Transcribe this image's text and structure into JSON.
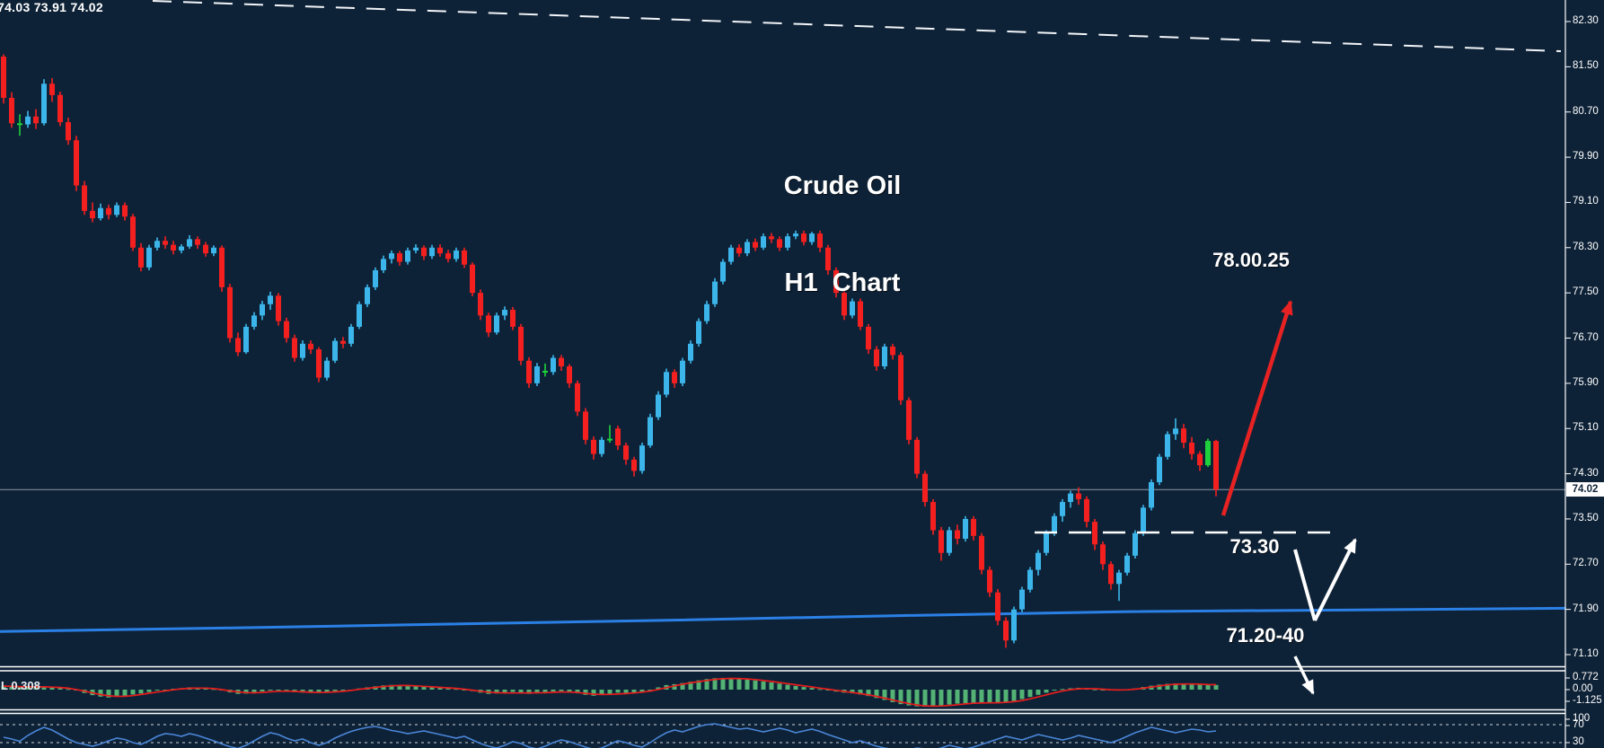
{
  "window": {
    "background": "#0e2237"
  },
  "chart_data": {
    "type": "candlestick",
    "title_line1": "Crude Oil",
    "title_line2": "H1  Chart",
    "quote_readout": "74.03 73.91 74.02",
    "timeframe": "H1",
    "price_ticks": [
      "82.30",
      "81.50",
      "80.70",
      "79.90",
      "79.10",
      "78.30",
      "77.50",
      "76.70",
      "75.90",
      "75.10",
      "74.30",
      "73.50",
      "72.70",
      "71.90",
      "71.10"
    ],
    "current_price": "74.02",
    "annotations": {
      "target": "78.00.25",
      "support": "73.30",
      "zone": "71.20-40"
    },
    "colors": {
      "bull": "#3cb6ea",
      "bear": "#f42020",
      "doji_green": "#1ed13c",
      "ma": "#2b80e6",
      "histogram": "#53b274",
      "signal": "#e81c1c",
      "stoch": "#4a86d8",
      "annotation_red": "#e82222",
      "annotation_blue": "#1e6fe0",
      "price_line": "#8b98a6",
      "axis_white": "#ffffff"
    },
    "candles": [
      [
        81.68,
        81.72,
        80.85,
        80.95
      ],
      [
        80.95,
        81.05,
        80.42,
        80.5
      ],
      [
        80.5,
        80.66,
        80.28,
        80.48,
        1
      ],
      [
        80.48,
        80.72,
        80.42,
        80.62
      ],
      [
        80.62,
        80.75,
        80.4,
        80.5
      ],
      [
        80.5,
        81.28,
        80.46,
        81.2
      ],
      [
        81.2,
        81.3,
        80.88,
        81.0
      ],
      [
        81.0,
        81.06,
        80.45,
        80.52
      ],
      [
        80.52,
        80.6,
        80.12,
        80.2
      ],
      [
        80.2,
        80.28,
        79.3,
        79.4
      ],
      [
        79.4,
        79.48,
        78.88,
        78.95
      ],
      [
        78.95,
        79.1,
        78.75,
        78.82
      ],
      [
        78.82,
        79.08,
        78.78,
        79.0
      ],
      [
        79.0,
        79.06,
        78.8,
        78.88
      ],
      [
        78.88,
        79.1,
        78.84,
        79.05
      ],
      [
        79.05,
        79.1,
        78.78,
        78.85
      ],
      [
        78.85,
        78.9,
        78.24,
        78.3
      ],
      [
        78.3,
        78.38,
        77.88,
        77.95
      ],
      [
        77.95,
        78.35,
        77.9,
        78.3
      ],
      [
        78.3,
        78.48,
        78.25,
        78.42
      ],
      [
        78.42,
        78.5,
        78.28,
        78.35
      ],
      [
        78.35,
        78.42,
        78.18,
        78.25
      ],
      [
        78.25,
        78.36,
        78.2,
        78.32
      ],
      [
        78.32,
        78.52,
        78.28,
        78.45
      ],
      [
        78.45,
        78.5,
        78.28,
        78.35
      ],
      [
        78.35,
        78.4,
        78.14,
        78.2
      ],
      [
        78.2,
        78.34,
        78.15,
        78.3
      ],
      [
        78.3,
        78.34,
        77.52,
        77.6
      ],
      [
        77.6,
        77.66,
        76.62,
        76.7
      ],
      [
        76.7,
        76.8,
        76.38,
        76.45
      ],
      [
        76.45,
        76.95,
        76.42,
        76.9
      ],
      [
        76.9,
        77.16,
        76.85,
        77.1
      ],
      [
        77.1,
        77.36,
        77.02,
        77.3
      ],
      [
        77.3,
        77.52,
        77.2,
        77.45
      ],
      [
        77.45,
        77.5,
        76.92,
        77.0
      ],
      [
        77.0,
        77.06,
        76.62,
        76.7
      ],
      [
        76.7,
        76.76,
        76.28,
        76.35
      ],
      [
        76.35,
        76.66,
        76.3,
        76.6
      ],
      [
        76.6,
        76.66,
        76.42,
        76.5
      ],
      [
        76.5,
        76.54,
        75.92,
        76.0
      ],
      [
        76.0,
        76.36,
        75.95,
        76.3
      ],
      [
        76.3,
        76.7,
        76.26,
        76.65
      ],
      [
        76.65,
        76.72,
        76.52,
        76.6
      ],
      [
        76.6,
        76.95,
        76.55,
        76.9
      ],
      [
        76.9,
        77.35,
        76.86,
        77.3
      ],
      [
        77.3,
        77.65,
        77.25,
        77.6
      ],
      [
        77.6,
        77.95,
        77.55,
        77.9
      ],
      [
        77.9,
        78.16,
        77.85,
        78.1
      ],
      [
        78.1,
        78.25,
        78.02,
        78.2
      ],
      [
        78.2,
        78.24,
        77.98,
        78.05
      ],
      [
        78.05,
        78.3,
        78.0,
        78.25
      ],
      [
        78.25,
        78.36,
        78.2,
        78.3
      ],
      [
        78.3,
        78.34,
        78.08,
        78.15
      ],
      [
        78.15,
        78.35,
        78.1,
        78.3
      ],
      [
        78.3,
        78.36,
        78.14,
        78.2
      ],
      [
        78.2,
        78.26,
        78.04,
        78.1
      ],
      [
        78.1,
        78.3,
        78.05,
        78.25
      ],
      [
        78.25,
        78.3,
        77.94,
        78.0
      ],
      [
        78.0,
        78.04,
        77.44,
        77.5
      ],
      [
        77.5,
        77.56,
        77.02,
        77.1
      ],
      [
        77.1,
        77.15,
        76.72,
        76.8
      ],
      [
        76.8,
        77.15,
        76.76,
        77.1
      ],
      [
        77.1,
        77.26,
        77.02,
        77.2
      ],
      [
        77.2,
        77.25,
        76.84,
        76.9
      ],
      [
        76.9,
        76.95,
        76.22,
        76.3
      ],
      [
        76.3,
        76.36,
        75.82,
        75.9
      ],
      [
        75.9,
        76.26,
        75.85,
        76.2
      ],
      [
        76.12,
        76.25,
        76.02,
        76.1,
        1
      ],
      [
        76.1,
        76.4,
        76.05,
        76.35
      ],
      [
        76.35,
        76.4,
        76.12,
        76.2
      ],
      [
        76.2,
        76.24,
        75.82,
        75.9
      ],
      [
        75.9,
        75.95,
        75.32,
        75.4
      ],
      [
        75.4,
        75.46,
        74.82,
        74.9
      ],
      [
        74.9,
        74.96,
        74.55,
        74.65
      ],
      [
        74.65,
        74.95,
        74.6,
        74.9
      ],
      [
        74.92,
        75.16,
        74.85,
        74.9,
        1
      ],
      [
        75.1,
        75.15,
        74.72,
        74.8
      ],
      [
        74.8,
        74.85,
        74.46,
        74.55
      ],
      [
        74.55,
        74.6,
        74.25,
        74.35
      ],
      [
        74.35,
        74.85,
        74.3,
        74.8
      ],
      [
        74.8,
        75.36,
        74.76,
        75.3
      ],
      [
        75.3,
        75.76,
        75.25,
        75.7
      ],
      [
        75.7,
        76.16,
        75.65,
        76.1
      ],
      [
        76.1,
        76.15,
        75.82,
        75.9
      ],
      [
        75.9,
        76.35,
        75.85,
        76.3
      ],
      [
        76.3,
        76.66,
        76.25,
        76.6
      ],
      [
        76.6,
        77.05,
        76.55,
        77.0
      ],
      [
        77.0,
        77.36,
        76.95,
        77.3
      ],
      [
        77.3,
        77.76,
        77.25,
        77.7
      ],
      [
        77.7,
        78.1,
        77.65,
        78.05
      ],
      [
        78.05,
        78.35,
        78.0,
        78.3
      ],
      [
        78.3,
        78.36,
        78.14,
        78.2
      ],
      [
        78.2,
        78.45,
        78.15,
        78.4
      ],
      [
        78.4,
        78.46,
        78.24,
        78.3
      ],
      [
        78.3,
        78.55,
        78.26,
        78.5
      ],
      [
        78.5,
        78.56,
        78.38,
        78.45
      ],
      [
        78.45,
        78.5,
        78.24,
        78.3
      ],
      [
        78.3,
        78.55,
        78.25,
        78.5
      ],
      [
        78.5,
        78.6,
        78.45,
        78.55
      ],
      [
        78.55,
        78.6,
        78.34,
        78.4
      ],
      [
        78.4,
        78.58,
        78.35,
        78.55
      ],
      [
        78.55,
        78.6,
        78.22,
        78.3
      ],
      [
        78.3,
        78.35,
        77.82,
        77.9
      ],
      [
        77.9,
        77.95,
        77.42,
        77.5
      ],
      [
        77.5,
        77.55,
        77.02,
        77.1
      ],
      [
        77.1,
        77.4,
        77.05,
        77.35
      ],
      [
        77.35,
        77.4,
        76.84,
        76.9
      ],
      [
        76.9,
        76.95,
        76.42,
        76.5
      ],
      [
        76.5,
        76.56,
        76.12,
        76.2
      ],
      [
        76.2,
        76.6,
        76.15,
        76.55
      ],
      [
        76.55,
        76.6,
        76.32,
        76.4
      ],
      [
        76.4,
        76.45,
        75.52,
        75.6
      ],
      [
        75.6,
        75.65,
        74.82,
        74.9
      ],
      [
        74.9,
        74.95,
        74.22,
        74.3
      ],
      [
        74.3,
        74.35,
        73.72,
        73.8
      ],
      [
        73.8,
        73.85,
        73.22,
        73.3
      ],
      [
        73.3,
        73.36,
        72.76,
        72.9
      ],
      [
        72.9,
        73.36,
        72.85,
        73.3
      ],
      [
        73.3,
        73.4,
        73.05,
        73.15
      ],
      [
        73.15,
        73.55,
        73.1,
        73.5
      ],
      [
        73.5,
        73.55,
        73.12,
        73.2
      ],
      [
        73.2,
        73.25,
        72.52,
        72.6
      ],
      [
        72.6,
        72.66,
        72.12,
        72.2
      ],
      [
        72.2,
        72.26,
        71.62,
        71.7
      ],
      [
        71.7,
        71.76,
        71.22,
        71.35
      ],
      [
        71.35,
        71.95,
        71.3,
        71.9
      ],
      [
        71.9,
        72.3,
        71.85,
        72.25
      ],
      [
        72.25,
        72.65,
        72.2,
        72.6
      ],
      [
        72.6,
        72.95,
        72.5,
        72.9
      ],
      [
        72.9,
        73.3,
        72.85,
        73.25
      ],
      [
        73.25,
        73.6,
        73.2,
        73.55
      ],
      [
        73.55,
        73.85,
        73.45,
        73.8
      ],
      [
        73.8,
        74.0,
        73.7,
        73.95
      ],
      [
        73.95,
        74.06,
        73.75,
        73.85
      ],
      [
        73.85,
        73.9,
        73.35,
        73.45
      ],
      [
        73.45,
        73.5,
        72.95,
        73.05
      ],
      [
        73.05,
        73.1,
        72.6,
        72.7
      ],
      [
        72.7,
        72.75,
        72.25,
        72.35
      ],
      [
        72.35,
        72.6,
        72.05,
        72.55
      ],
      [
        72.55,
        72.9,
        72.5,
        72.85
      ],
      [
        72.85,
        73.3,
        72.8,
        73.25
      ],
      [
        73.25,
        73.75,
        73.2,
        73.7
      ],
      [
        73.7,
        74.2,
        73.65,
        74.15
      ],
      [
        74.15,
        74.65,
        74.1,
        74.6
      ],
      [
        74.6,
        75.05,
        74.55,
        75.0
      ],
      [
        75.0,
        75.28,
        74.9,
        75.1
      ],
      [
        75.1,
        75.18,
        74.75,
        74.85
      ],
      [
        74.85,
        74.95,
        74.55,
        74.65
      ],
      [
        74.65,
        74.7,
        74.35,
        74.45
      ],
      [
        74.45,
        74.92,
        74.42,
        74.88,
        1
      ],
      [
        74.88,
        74.9,
        73.9,
        74.02
      ]
    ],
    "ma_line": [
      [
        0,
        71.51
      ],
      [
        250,
        71.57
      ],
      [
        500,
        71.64
      ],
      [
        750,
        71.71
      ],
      [
        1000,
        71.79
      ],
      [
        1250,
        71.86
      ],
      [
        1742,
        71.92
      ]
    ],
    "macd": {
      "label": "L 0.308",
      "axis_labels": [
        "0.772",
        "0.00",
        "-1.125"
      ],
      "axis_values": [
        0.772,
        0.0,
        -1.125
      ],
      "histogram": [
        0.25,
        0.22,
        0.18,
        0.15,
        0.18,
        0.22,
        0.18,
        0.1,
        0.04,
        -0.06,
        -0.22,
        -0.36,
        -0.46,
        -0.52,
        -0.47,
        -0.4,
        -0.32,
        -0.25,
        -0.16,
        -0.06,
        0.0,
        0.06,
        0.1,
        0.15,
        0.12,
        0.08,
        0.04,
        -0.06,
        -0.18,
        -0.28,
        -0.26,
        -0.2,
        -0.12,
        -0.06,
        -0.06,
        -0.1,
        -0.17,
        -0.2,
        -0.18,
        -0.22,
        -0.18,
        -0.1,
        -0.05,
        0.0,
        0.08,
        0.15,
        0.22,
        0.28,
        0.31,
        0.28,
        0.25,
        0.22,
        0.18,
        0.15,
        0.12,
        0.08,
        0.05,
        0.0,
        -0.1,
        -0.2,
        -0.28,
        -0.25,
        -0.18,
        -0.15,
        -0.22,
        -0.28,
        -0.22,
        -0.17,
        -0.12,
        -0.1,
        -0.15,
        -0.24,
        -0.34,
        -0.4,
        -0.35,
        -0.26,
        -0.2,
        -0.22,
        -0.25,
        -0.15,
        0.0,
        0.15,
        0.3,
        0.36,
        0.43,
        0.52,
        0.61,
        0.69,
        0.75,
        0.77,
        0.76,
        0.72,
        0.66,
        0.6,
        0.54,
        0.47,
        0.4,
        0.32,
        0.24,
        0.17,
        0.11,
        0.04,
        -0.05,
        -0.13,
        -0.2,
        -0.24,
        -0.32,
        -0.42,
        -0.55,
        -0.68,
        -0.82,
        -0.95,
        -1.04,
        -1.1,
        -1.12,
        -1.1,
        -1.05,
        -0.98,
        -0.92,
        -0.88,
        -0.85,
        -0.85,
        -0.87,
        -0.88,
        -0.84,
        -0.74,
        -0.62,
        -0.48,
        -0.34,
        -0.2,
        -0.06,
        0.04,
        0.09,
        0.12,
        0.08,
        0.02,
        -0.02,
        -0.06,
        -0.05,
        0.0,
        0.08,
        0.17,
        0.26,
        0.33,
        0.38,
        0.41,
        0.39,
        0.35,
        0.33,
        0.31,
        0.308
      ]
    },
    "stochastic": {
      "axis_labels": [
        "100",
        "70",
        "30"
      ],
      "axis_values": [
        100,
        70,
        30
      ],
      "values": [
        42,
        38,
        33,
        46,
        56,
        64,
        58,
        48,
        38,
        30,
        26,
        22,
        27,
        34,
        40,
        37,
        30,
        26,
        34,
        44,
        50,
        48,
        44,
        50,
        46,
        40,
        34,
        27,
        21,
        17,
        24,
        34,
        44,
        52,
        48,
        40,
        34,
        38,
        30,
        24,
        30,
        40,
        48,
        55,
        60,
        64,
        66,
        62,
        57,
        54,
        50,
        53,
        56,
        52,
        48,
        44,
        40,
        44,
        36,
        28,
        22,
        18,
        24,
        32,
        28,
        20,
        16,
        22,
        30,
        36,
        32,
        26,
        20,
        15,
        18,
        26,
        34,
        30,
        24,
        20,
        30,
        42,
        52,
        58,
        54,
        60,
        66,
        70,
        72,
        68,
        64,
        60,
        62,
        58,
        54,
        58,
        62,
        58,
        52,
        56,
        60,
        55,
        48,
        42,
        36,
        30,
        34,
        28,
        22,
        18,
        15,
        12,
        14,
        18,
        16,
        14,
        18,
        24,
        20,
        16,
        20,
        26,
        32,
        38,
        44,
        40,
        36,
        42,
        48,
        44,
        40,
        36,
        40,
        46,
        42,
        38,
        34,
        30,
        36,
        44,
        52,
        58,
        64,
        60,
        56,
        52,
        56,
        60,
        58,
        54,
        56
      ]
    }
  }
}
